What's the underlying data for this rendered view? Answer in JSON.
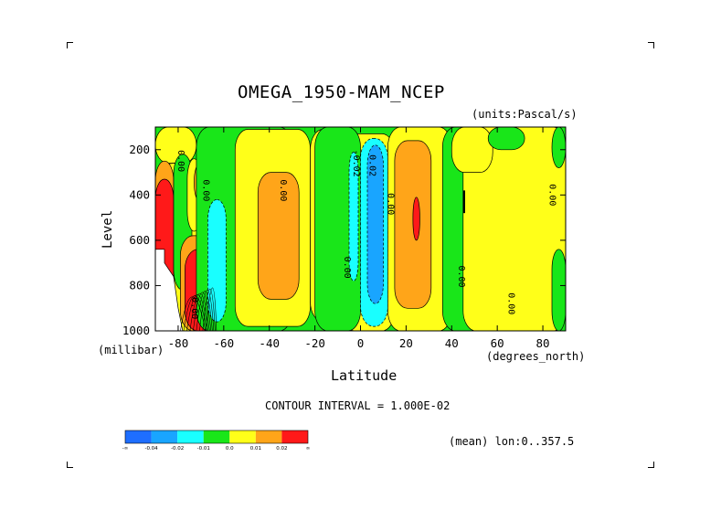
{
  "chart_data": {
    "type": "heatmap",
    "title": "OMEGA_1950-MAM_NCEP",
    "units": "(units:Pascal/s)",
    "xlabel": "Latitude",
    "xunit": "(degrees_north)",
    "ylabel": "Level",
    "yunit": "(millibar)",
    "xlim": [
      -90,
      90
    ],
    "ylim": [
      1000,
      100
    ],
    "xticks": [
      "-80",
      "-60",
      "-40",
      "-20",
      "0",
      "20",
      "40",
      "60",
      "80"
    ],
    "xtick_values": [
      -80,
      -60,
      -40,
      -20,
      0,
      20,
      40,
      60,
      80
    ],
    "yticks": [
      "200",
      "400",
      "600",
      "800",
      "1000"
    ],
    "ytick_values": [
      200,
      400,
      600,
      800,
      1000
    ],
    "contour_interval": "CONTOUR INTERVAL = 1.000E-02",
    "footer": "(mean) lon:0..357.5",
    "contour_labels": [
      "0.00",
      "0.00",
      "0.00",
      "-0.02",
      "0.00",
      "0.00",
      "0.00",
      "0.00",
      "0.00",
      "0.00",
      "0.02"
    ],
    "colorbar": {
      "colors": [
        "#1e6eff",
        "#19a5ff",
        "#19ffff",
        "#19e619",
        "#ffff19",
        "#ffa519",
        "#ff1919"
      ],
      "labels": [
        "-∞",
        "-0.04",
        "-0.02",
        "-0.01",
        "0.0",
        "0.01",
        "0.02",
        "∞"
      ]
    },
    "regions": [
      {
        "level": "0.00..0.01",
        "band": 4,
        "lat": [
          -90,
          -72
        ],
        "p": [
          100,
          260
        ]
      },
      {
        "level": "0.00..0.01",
        "band": 4,
        "lat": [
          -88,
          -60
        ],
        "p": [
          260,
          1000
        ]
      },
      {
        "level": "0.01..0.02",
        "band": 5,
        "lat": [
          -90,
          -82
        ],
        "p": [
          250,
          1000
        ]
      },
      {
        "level": ">0.02",
        "band": 6,
        "lat": [
          -90,
          -82
        ],
        "p": [
          330,
          1000
        ]
      },
      {
        "level": "-0.01..0.00",
        "band": 3,
        "lat": [
          -82,
          -74
        ],
        "p": [
          220,
          820
        ]
      },
      {
        "level": "0.00..0.01",
        "band": 4,
        "lat": [
          -76,
          -70
        ],
        "p": [
          240,
          560
        ]
      },
      {
        "level": "0.01..0.02",
        "band": 5,
        "lat": [
          -73,
          -68
        ],
        "p": [
          260,
          430
        ]
      },
      {
        "level": "0.01..0.02",
        "band": 5,
        "lat": [
          -79,
          -60
        ],
        "p": [
          580,
          1000
        ]
      },
      {
        "level": ">0.02",
        "band": 6,
        "lat": [
          -77,
          -64
        ],
        "p": [
          640,
          1000
        ]
      },
      {
        "level": "-0.01..0.00",
        "band": 3,
        "lat": [
          -72,
          -30
        ],
        "p": [
          100,
          1000
        ]
      },
      {
        "level": "-0.02..-0.01",
        "band": 2,
        "lat": [
          -67,
          -59
        ],
        "p": [
          420,
          960
        ]
      },
      {
        "level": "0.00..0.01",
        "band": 4,
        "lat": [
          -55,
          -22
        ],
        "p": [
          110,
          980
        ]
      },
      {
        "level": "0.01..0.02",
        "band": 5,
        "lat": [
          -45,
          -27
        ],
        "p": [
          300,
          860
        ]
      },
      {
        "level": "0.00..0.01",
        "band": 4,
        "lat": [
          -22,
          -10
        ],
        "p": [
          110,
          960
        ]
      },
      {
        "level": "0.00..0.01",
        "band": 4,
        "lat": [
          -8,
          15
        ],
        "p": [
          130,
          1000
        ]
      },
      {
        "level": "-0.01..0.00",
        "band": 3,
        "lat": [
          -20,
          0
        ],
        "p": [
          100,
          1000
        ]
      },
      {
        "level": "-0.02..-0.01",
        "band": 2,
        "lat": [
          -5,
          -1
        ],
        "p": [
          210,
          780
        ]
      },
      {
        "level": "-0.02..-0.01",
        "band": 2,
        "lat": [
          0,
          12
        ],
        "p": [
          150,
          980
        ]
      },
      {
        "level": "-0.04..-0.02",
        "band": 1,
        "lat": [
          3,
          10
        ],
        "p": [
          180,
          880
        ]
      },
      {
        "level": "0.00..0.01",
        "band": 4,
        "lat": [
          12,
          40
        ],
        "p": [
          100,
          1000
        ]
      },
      {
        "level": "0.01..0.02",
        "band": 5,
        "lat": [
          15,
          31
        ],
        "p": [
          160,
          900
        ]
      },
      {
        "level": ">0.02",
        "band": 6,
        "lat": [
          23,
          26
        ],
        "p": [
          410,
          600
        ]
      },
      {
        "level": "-0.01..0.00",
        "band": 3,
        "lat": [
          36,
          60
        ],
        "p": [
          100,
          1000
        ]
      },
      {
        "level": "0.00..0.01",
        "band": 4,
        "lat": [
          45,
          90
        ],
        "p": [
          100,
          1000
        ]
      },
      {
        "level": "0.00..0.01",
        "band": 4,
        "lat": [
          40,
          58
        ],
        "p": [
          100,
          300
        ]
      },
      {
        "level": "-0.01..0.00",
        "band": 3,
        "lat": [
          56,
          72
        ],
        "p": [
          100,
          200
        ]
      },
      {
        "level": "-0.01..0.00",
        "band": 3,
        "lat": [
          84,
          90
        ],
        "p": [
          100,
          280
        ]
      },
      {
        "level": "-0.01..0.00",
        "band": 3,
        "lat": [
          84,
          90
        ],
        "p": [
          640,
          1000
        ]
      }
    ]
  }
}
